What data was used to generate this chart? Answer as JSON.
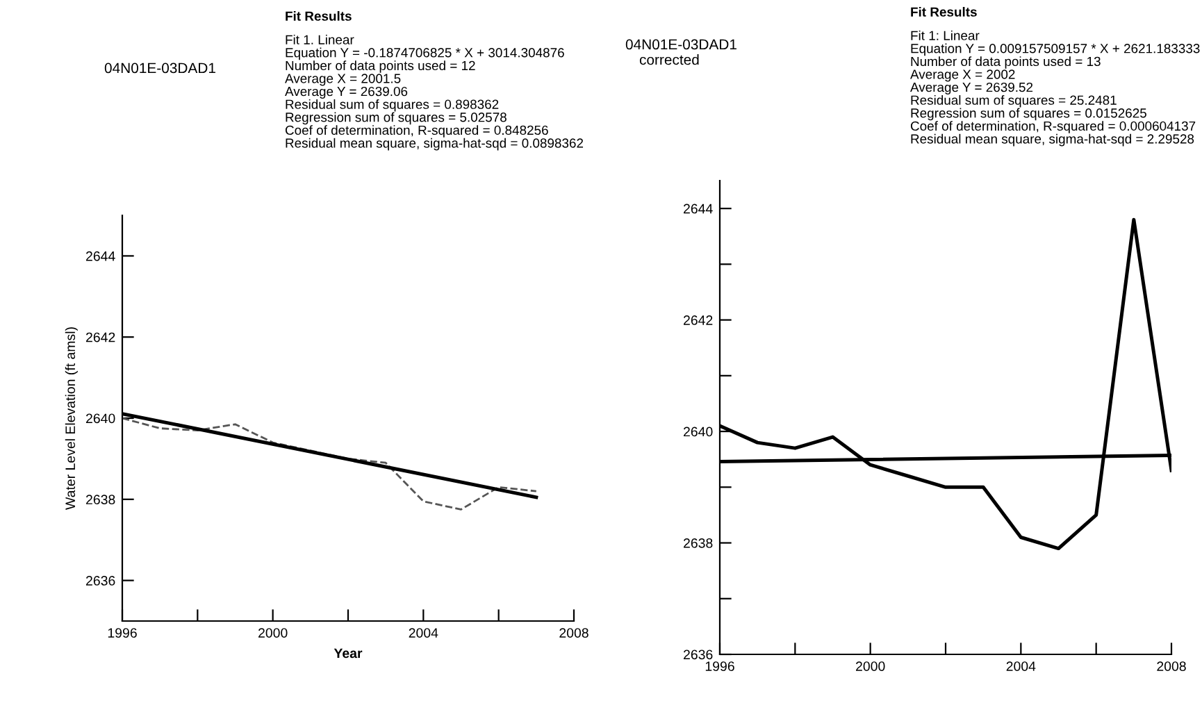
{
  "chart_data": [
    {
      "type": "line",
      "title": "04N01E-03DAD1",
      "xlabel": "Year",
      "ylabel": "Water Level Elevation (ft amsl)",
      "annotations": [
        "Fit Results",
        "Fit 1. Linear",
        "Equation Y = -0.1874706825 * X + 3014.304876",
        "Number of data points used = 12",
        "Average X = 2001.5",
        "Average Y = 2639.06",
        "Residual sum of squares = 0.898362",
        "Regression sum of squares = 5.02578",
        "Coef of determination, R-squared = 0.848256",
        "Residual mean square, sigma-hat-sqd = 0.0898362"
      ],
      "series": [
        {
          "x": [
            1996,
            1997,
            1998,
            1999,
            2000,
            2001,
            2002,
            2003,
            2004,
            2005,
            2006,
            2007
          ],
          "values": [
            2640.0,
            2639.75,
            2639.7,
            2639.85,
            2639.4,
            2639.2,
            2639.0,
            2638.9,
            2637.95,
            2637.75,
            2638.3,
            2638.2
          ],
          "color": "#555555",
          "line_style": "dashed"
        },
        {
          "x": [
            1996,
            2007
          ],
          "values": [
            2640.11,
            2638.05
          ],
          "color": "#000000",
          "line_style": "solid"
        }
      ],
      "xlim": [
        1996,
        2008
      ],
      "ylim": [
        2635,
        2645
      ],
      "xticks": [
        1996,
        {
          "value": 1998,
          "label": null
        },
        2000,
        {
          "value": 2002,
          "label": null
        },
        2004,
        {
          "value": 2006,
          "label": null
        },
        2008
      ],
      "yticks": [
        2636,
        2638,
        2640,
        2642,
        2644
      ]
    },
    {
      "type": "line",
      "title": "04N01E-03DAD1",
      "subtitle": "corrected",
      "annotations": [
        "Fit Results",
        "Fit 1: Linear",
        "Equation Y = 0.009157509157 * X + 2621.183333",
        "Number of data points used = 13",
        "Average X = 2002",
        "Average Y = 2639.52",
        "Residual sum of squares = 25.2481",
        "Regression sum of squares = 0.0152625",
        "Coef of determination, R-squared = 0.000604137",
        "Residual mean square, sigma-hat-sqd = 2.29528"
      ],
      "series": [
        {
          "x": [
            1996,
            1997,
            1998,
            1999,
            2000,
            2001,
            2002,
            2003,
            2004,
            2005,
            2006,
            2007,
            2008
          ],
          "values": [
            2640.1,
            2639.8,
            2639.7,
            2639.9,
            2639.4,
            2639.2,
            2639.0,
            2639.0,
            2638.1,
            2637.9,
            2638.5,
            2643.8,
            2639.3
          ],
          "color": "#000000",
          "line_style": "solid"
        },
        {
          "x": [
            1996,
            2008
          ],
          "values": [
            2639.46,
            2639.57
          ],
          "color": "#000000",
          "line_style": "solid"
        }
      ],
      "xlim": [
        1996,
        2008
      ],
      "ylim": [
        2636,
        2644.5
      ],
      "xticks": [
        1996,
        {
          "value": 1998,
          "label": null
        },
        2000,
        {
          "value": 2002,
          "label": null
        },
        2004,
        {
          "value": 2006,
          "label": null
        },
        2008
      ],
      "yticks": [
        2636,
        {
          "value": 2637,
          "label": null
        },
        2638,
        {
          "value": 2639,
          "label": null
        },
        2640,
        {
          "value": 2641,
          "label": null
        },
        2642,
        {
          "value": 2643,
          "label": null
        },
        2644
      ]
    }
  ]
}
